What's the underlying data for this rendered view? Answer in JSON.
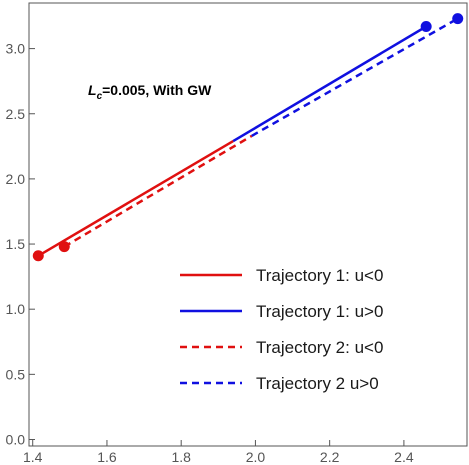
{
  "chart_data": {
    "type": "line",
    "title": "",
    "xlabel": "",
    "ylabel": "",
    "xlim": [
      1.39,
      2.57
    ],
    "ylim": [
      -0.05,
      3.35
    ],
    "xticks": [
      1.4,
      1.6,
      1.8,
      2.0,
      2.2,
      2.4
    ],
    "yticks": [
      0.0,
      0.5,
      1.0,
      1.5,
      2.0,
      2.5,
      3.0
    ],
    "grid": false,
    "annotation": {
      "italic": "L",
      "subscript": "c",
      "rest": "=0.005, With GW"
    },
    "legend_position": "bottom-right",
    "series": [
      {
        "name": "Trajectory 1: u<0",
        "color": "#e01010",
        "dash": "solid",
        "x": [
          1.415,
          1.94
        ],
        "y": [
          1.41,
          2.29
        ],
        "markers": [
          {
            "x": 1.415,
            "y": 1.41
          }
        ]
      },
      {
        "name": "Trajectory 1: u>0",
        "color": "#1010e0",
        "dash": "solid",
        "x": [
          1.94,
          2.46
        ],
        "y": [
          2.29,
          3.17
        ],
        "markers": [
          {
            "x": 2.46,
            "y": 3.17
          }
        ]
      },
      {
        "name": "Trajectory 2: u<0",
        "color": "#e01010",
        "dash": "dashed",
        "x": [
          1.485,
          1.99
        ],
        "y": [
          1.48,
          2.33
        ],
        "markers": [
          {
            "x": 1.485,
            "y": 1.48
          }
        ]
      },
      {
        "name": "Trajectory 2 u>0",
        "color": "#1010e0",
        "dash": "dashed",
        "x": [
          1.99,
          2.545
        ],
        "y": [
          2.33,
          3.23
        ],
        "markers": [
          {
            "x": 2.545,
            "y": 3.23
          }
        ]
      }
    ]
  }
}
